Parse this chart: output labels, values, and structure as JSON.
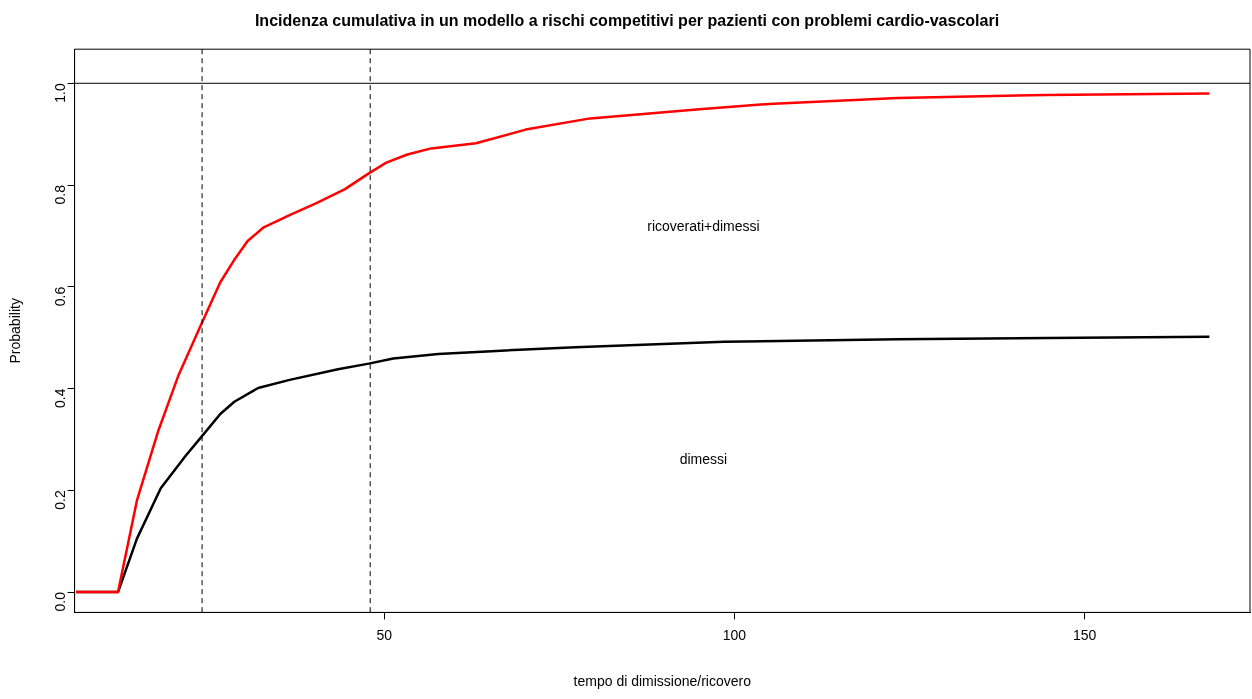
{
  "chart_data": {
    "type": "line",
    "title": "Incidenza cumulativa in un modello a rischi competitivi per pazienti con problemi cardio-vascolari",
    "xlabel": "tempo di dimissione/ricovero",
    "ylabel": "Probability",
    "series": [
      {
        "color": "#ff0000",
        "x": [
          6,
          12,
          14.7,
          17.7,
          20.6,
          23.9,
          26.6,
          28.6,
          30.5,
          32.8,
          36.5,
          40.4,
          44.4,
          47.8,
          50.3,
          53.3,
          56.7,
          63.1,
          70.2,
          79.4,
          95,
          105.6,
          123.3,
          144.5,
          167.8
        ],
        "values": [
          0,
          0,
          0.18,
          0.315,
          0.425,
          0.527,
          0.609,
          0.653,
          0.69,
          0.717,
          0.741,
          0.765,
          0.792,
          0.823,
          0.844,
          0.86,
          0.872,
          0.882,
          0.909,
          0.931,
          0.949,
          0.96,
          0.971,
          0.977,
          0.98
        ]
      },
      {
        "color": "#000000",
        "x": [
          6,
          12,
          14.7,
          18.1,
          21.6,
          23.9,
          26.6,
          28.6,
          32,
          36.5,
          43.4,
          47.8,
          51.3,
          57.7,
          66,
          77.3,
          98.5,
          123.3,
          167.8
        ],
        "values": [
          0,
          0,
          0.105,
          0.204,
          0.267,
          0.305,
          0.35,
          0.374,
          0.401,
          0.417,
          0.438,
          0.449,
          0.459,
          0.468,
          0.474,
          0.481,
          0.492,
          0.497,
          0.502
        ]
      }
    ],
    "xlim": [
      5.8,
      173.6
    ],
    "xticks": [
      50,
      100,
      150
    ],
    "ylim": [
      -0.04,
      1.067
    ],
    "yticks": [
      {
        "value": 0,
        "label": "0.0"
      },
      {
        "value": 0.2,
        "label": "0.2"
      },
      {
        "value": 0.4,
        "label": "0.4"
      },
      {
        "value": 0.6,
        "label": "0.6"
      },
      {
        "value": 0.8,
        "label": "0.8"
      },
      {
        "value": 1,
        "label": "1.0"
      }
    ],
    "ref_lines": [
      {
        "axis": "y",
        "value": 1,
        "color": "#000000",
        "line_style": "solid"
      },
      {
        "axis": "x",
        "value": 24,
        "color": "#000000",
        "line_style": "dashed"
      },
      {
        "axis": "x",
        "value": 48,
        "color": "#000000",
        "line_style": "dashed"
      }
    ],
    "annotations": [
      "ricoverati+dimessi",
      "dimessi"
    ],
    "grid": false,
    "legend": false,
    "marker": "none",
    "line_style": "solid"
  }
}
